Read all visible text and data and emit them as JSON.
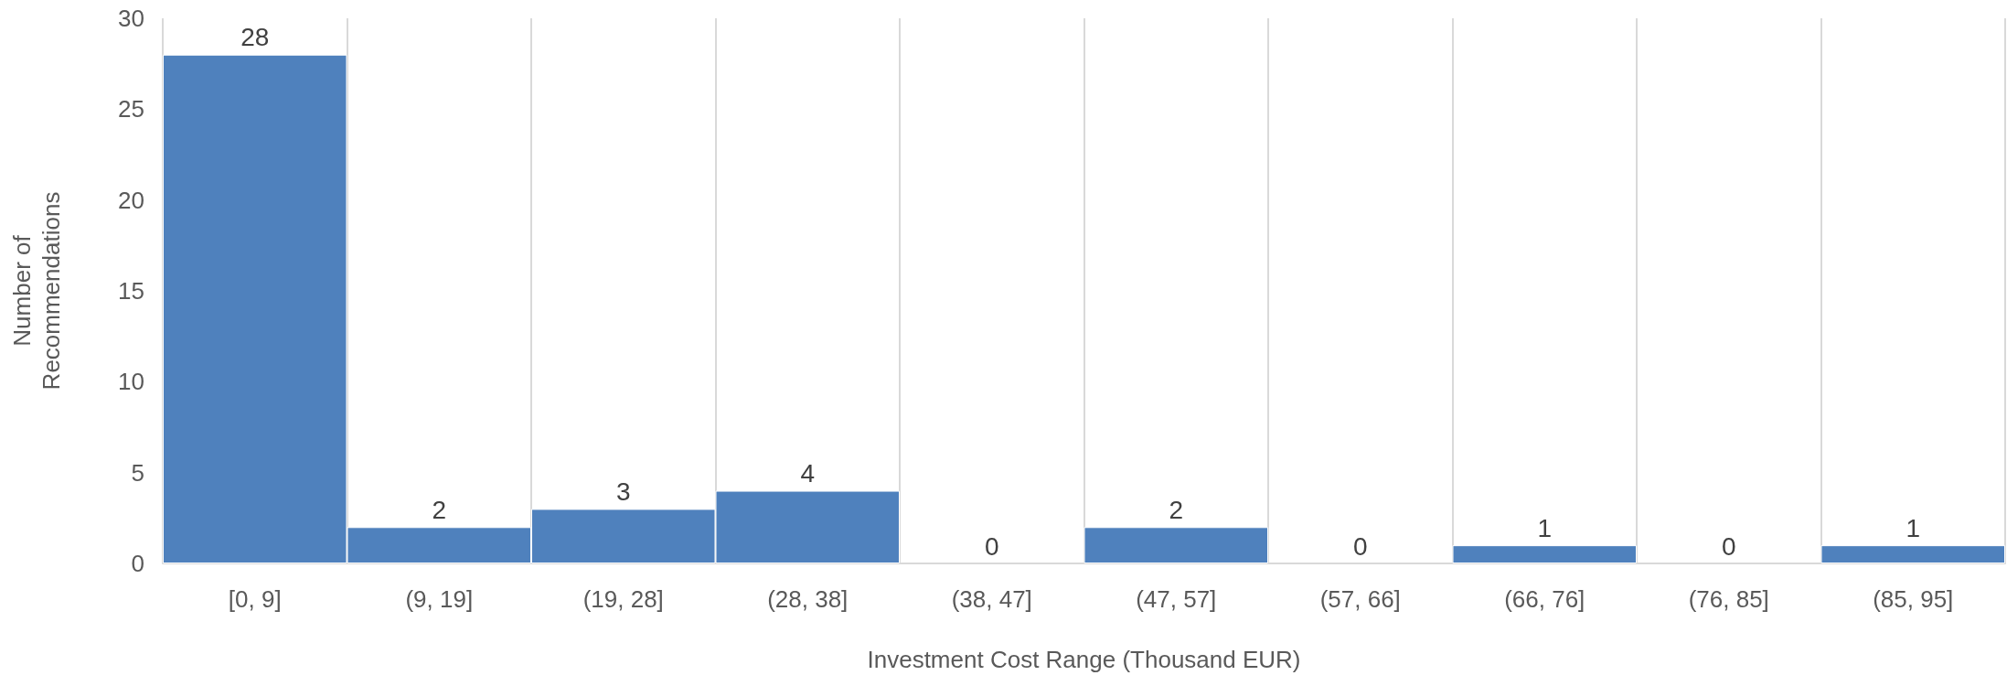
{
  "chart_data": {
    "type": "bar",
    "xlabel": "Investment Cost Range (Thousand EUR)",
    "ylabel": "Number of\nRecommendations",
    "categories": [
      "[0, 9]",
      "(9, 19]",
      "(19, 28]",
      "(28, 38]",
      "(38, 47]",
      "(47, 57]",
      "(57, 66]",
      "(66, 76]",
      "(76, 85]",
      "(85, 95]"
    ],
    "values": [
      28,
      2,
      3,
      4,
      0,
      2,
      0,
      1,
      0,
      1
    ],
    "color": "#4f81bd",
    "ylim": [
      0,
      30
    ],
    "yticks": [
      0,
      5,
      10,
      15,
      20,
      25,
      30
    ],
    "grid": "x",
    "data_labels": true
  }
}
